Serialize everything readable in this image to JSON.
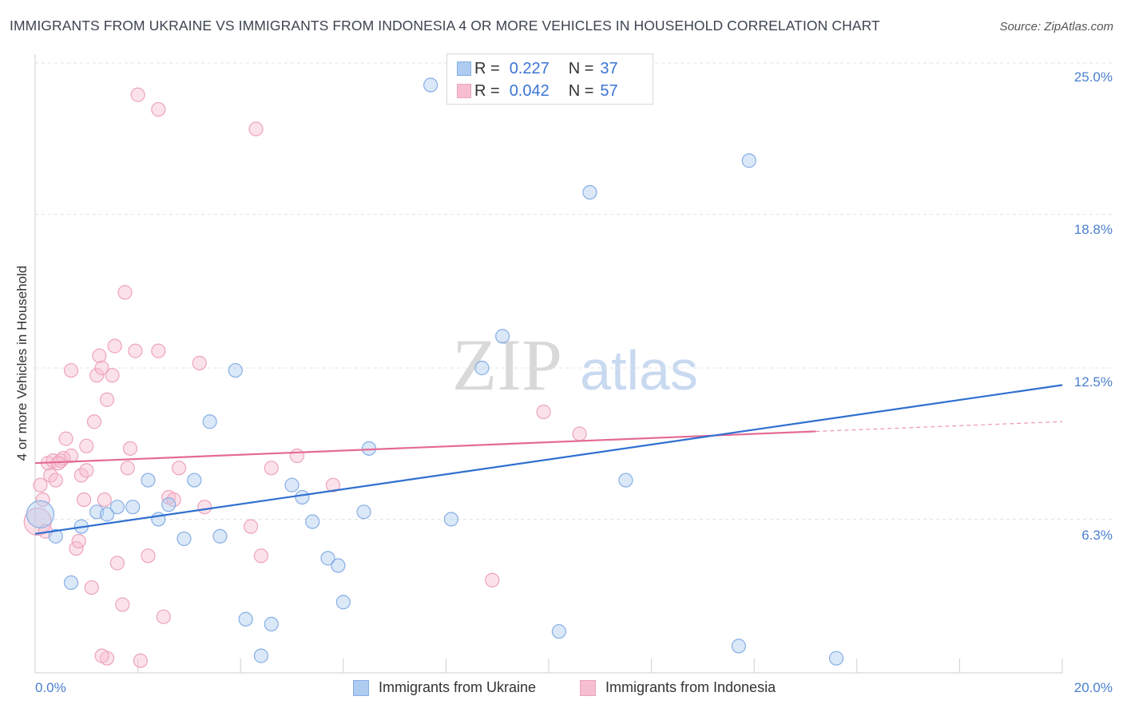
{
  "title": "IMMIGRANTS FROM UKRAINE VS IMMIGRANTS FROM INDONESIA 4 OR MORE VEHICLES IN HOUSEHOLD CORRELATION CHART",
  "source": "Source: ZipAtlas.com",
  "watermark": {
    "zip": "ZIP",
    "atlas": "atlas"
  },
  "legend": {
    "ukraine": {
      "r_label": "R =",
      "r_value": "0.227",
      "n_label": "N =",
      "n_value": "37"
    },
    "indonesia": {
      "r_label": "R =",
      "r_value": "0.042",
      "n_label": "N =",
      "n_value": "57"
    }
  },
  "bottom_legend": {
    "ukraine": "Immigrants from Ukraine",
    "indonesia": "Immigrants from Indonesia"
  },
  "colors": {
    "ukraine_fill": "#aecbf0",
    "ukraine_stroke": "#86aee6",
    "ukraine_line": "#2f6fcf",
    "indonesia_fill": "#f6bed0",
    "indonesia_stroke": "#eea3bb",
    "indonesia_line": "#e46a93",
    "tick_text": "#4a7fd0"
  },
  "chart_data": {
    "type": "scatter",
    "title": "IMMIGRANTS FROM UKRAINE VS IMMIGRANTS FROM INDONESIA 4 OR MORE VEHICLES IN HOUSEHOLD CORRELATION CHART",
    "xlabel": "",
    "ylabel": "4 or more Vehicles in Household",
    "xlim": [
      0,
      20
    ],
    "ylim": [
      0,
      25
    ],
    "x_tick_labels": [
      "0.0%",
      "20.0%"
    ],
    "y_ticks": [
      6.3,
      12.5,
      18.8,
      25.0
    ],
    "y_tick_labels": [
      "6.3%",
      "12.5%",
      "18.8%",
      "25.0%"
    ],
    "legend_position": "top-center",
    "series": [
      {
        "name": "Immigrants from Ukraine",
        "r": 0.227,
        "n": 37,
        "trend": {
          "x": [
            0,
            20
          ],
          "y": [
            5.7,
            11.8
          ]
        },
        "points": [
          [
            0.1,
            6.5,
            "large"
          ],
          [
            0.4,
            5.6
          ],
          [
            0.7,
            3.7
          ],
          [
            0.9,
            6.0
          ],
          [
            1.2,
            6.6
          ],
          [
            1.4,
            6.5
          ],
          [
            1.6,
            6.8
          ],
          [
            1.9,
            6.8
          ],
          [
            2.2,
            7.9
          ],
          [
            2.4,
            6.3
          ],
          [
            2.6,
            6.9
          ],
          [
            2.9,
            5.5
          ],
          [
            3.1,
            7.9
          ],
          [
            3.4,
            10.3
          ],
          [
            3.6,
            5.6
          ],
          [
            4.1,
            2.2
          ],
          [
            3.9,
            12.4
          ],
          [
            4.4,
            0.7
          ],
          [
            4.6,
            2.0
          ],
          [
            5.0,
            7.7
          ],
          [
            5.2,
            7.2
          ],
          [
            5.4,
            6.2
          ],
          [
            5.7,
            4.7
          ],
          [
            6.0,
            2.9
          ],
          [
            5.9,
            4.4
          ],
          [
            6.4,
            6.6
          ],
          [
            6.5,
            9.2
          ],
          [
            7.7,
            24.1
          ],
          [
            8.1,
            6.3
          ],
          [
            8.7,
            12.5
          ],
          [
            9.1,
            13.8
          ],
          [
            10.2,
            1.7
          ],
          [
            10.8,
            19.7
          ],
          [
            11.5,
            7.9
          ],
          [
            13.9,
            21.0
          ],
          [
            13.7,
            1.1
          ],
          [
            15.6,
            0.6
          ]
        ]
      },
      {
        "name": "Immigrants from Indonesia",
        "r": 0.042,
        "n": 57,
        "trend": {
          "x": [
            0,
            15.2
          ],
          "y": [
            8.6,
            9.9
          ]
        },
        "trend_dashed": {
          "x": [
            15.2,
            20
          ],
          "y": [
            9.9,
            10.3
          ]
        },
        "points": [
          [
            0.05,
            6.2,
            "large"
          ],
          [
            0.1,
            7.7
          ],
          [
            0.15,
            7.1
          ],
          [
            0.2,
            5.8
          ],
          [
            0.25,
            8.6
          ],
          [
            0.3,
            8.1
          ],
          [
            0.35,
            8.7
          ],
          [
            0.4,
            7.9
          ],
          [
            0.5,
            8.7
          ],
          [
            0.6,
            9.6
          ],
          [
            0.7,
            8.9
          ],
          [
            0.7,
            12.4
          ],
          [
            0.8,
            5.1
          ],
          [
            0.85,
            5.4
          ],
          [
            0.9,
            8.1
          ],
          [
            0.95,
            7.1
          ],
          [
            1.0,
            8.3
          ],
          [
            1.0,
            9.3
          ],
          [
            1.1,
            3.5
          ],
          [
            1.15,
            10.3
          ],
          [
            1.2,
            12.2
          ],
          [
            1.25,
            13.0
          ],
          [
            1.3,
            12.5
          ],
          [
            1.35,
            7.1
          ],
          [
            1.4,
            11.2
          ],
          [
            1.5,
            12.2
          ],
          [
            1.55,
            13.4
          ],
          [
            1.6,
            4.5
          ],
          [
            1.7,
            2.8
          ],
          [
            1.75,
            15.6
          ],
          [
            1.8,
            8.4
          ],
          [
            1.85,
            9.2
          ],
          [
            1.95,
            13.2
          ],
          [
            2.0,
            23.7
          ],
          [
            2.05,
            0.5
          ],
          [
            2.2,
            4.8
          ],
          [
            2.4,
            13.2
          ],
          [
            2.4,
            23.1
          ],
          [
            2.5,
            2.3
          ],
          [
            2.6,
            7.2
          ],
          [
            2.7,
            7.1
          ],
          [
            2.8,
            8.4
          ],
          [
            3.2,
            12.7
          ],
          [
            3.3,
            6.8
          ],
          [
            4.2,
            6.0
          ],
          [
            4.3,
            22.3
          ],
          [
            4.4,
            4.8
          ],
          [
            4.6,
            8.4
          ],
          [
            5.1,
            8.9
          ],
          [
            5.8,
            7.7
          ],
          [
            8.9,
            3.8
          ],
          [
            9.9,
            10.7
          ],
          [
            10.6,
            9.8
          ],
          [
            1.4,
            0.6
          ],
          [
            1.3,
            0.7
          ],
          [
            0.55,
            8.8
          ],
          [
            0.45,
            8.6
          ]
        ]
      }
    ]
  }
}
